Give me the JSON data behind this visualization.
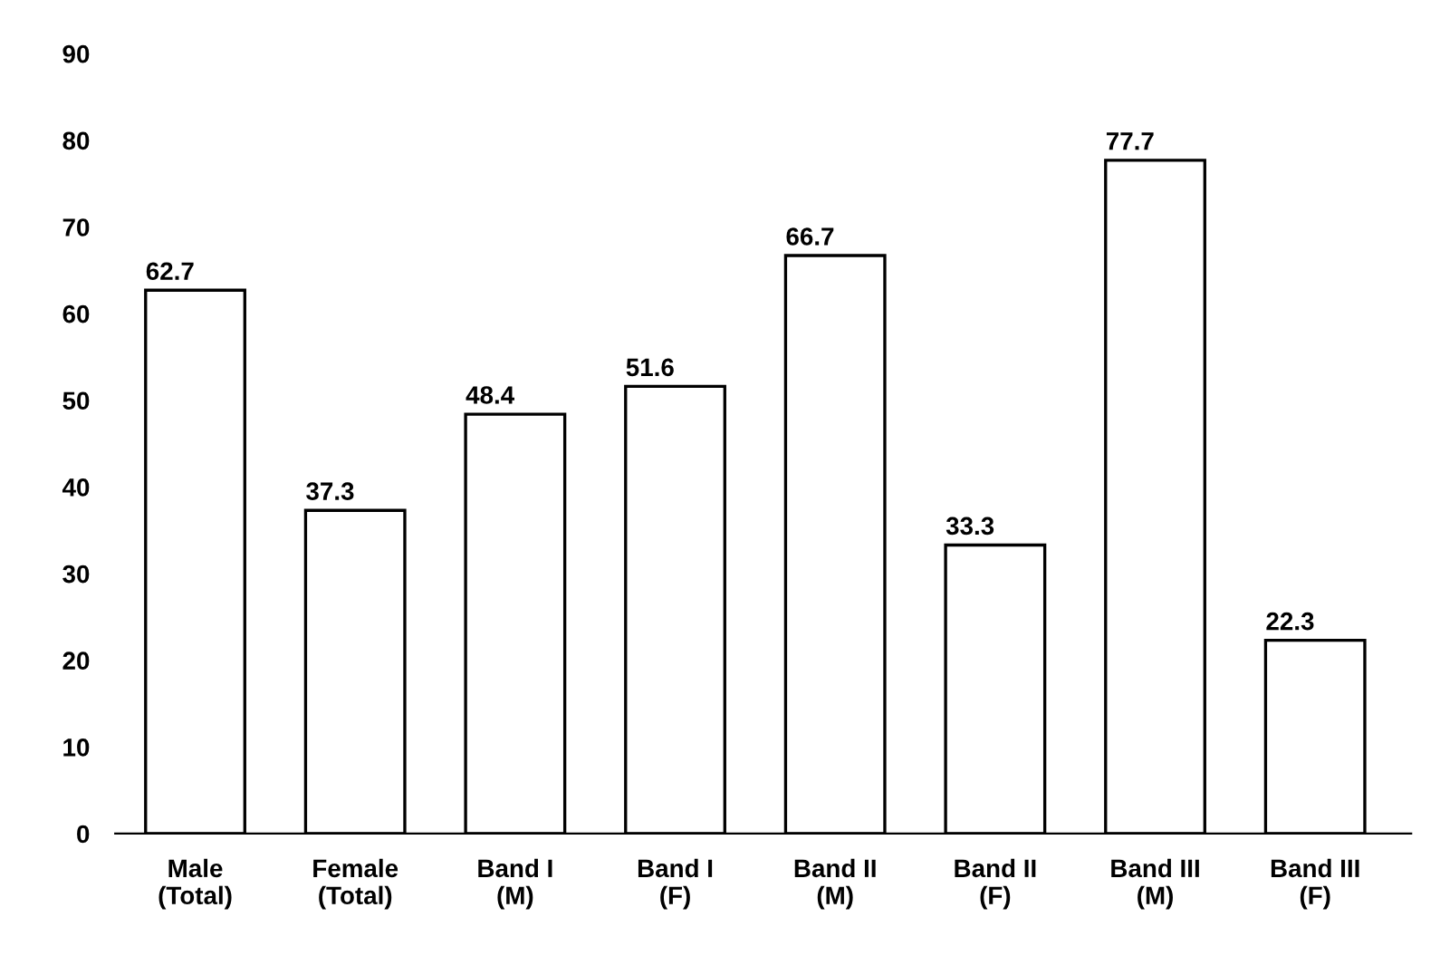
{
  "chart_data": {
    "type": "bar",
    "categories": [
      "Male\n(Total)",
      "Female\n(Total)",
      "Band I\n(M)",
      "Band I\n(F)",
      "Band II\n(M)",
      "Band II\n(F)",
      "Band III\n(M)",
      "Band III\n(F)"
    ],
    "values": [
      62.7,
      37.3,
      48.4,
      51.6,
      66.7,
      33.3,
      77.7,
      22.3
    ],
    "color": "#ffffff",
    "ylim": [
      0,
      90
    ],
    "yticks": [
      0,
      10,
      20,
      30,
      40,
      50,
      60,
      70,
      80,
      90
    ],
    "grid": false,
    "data_labels": true
  }
}
